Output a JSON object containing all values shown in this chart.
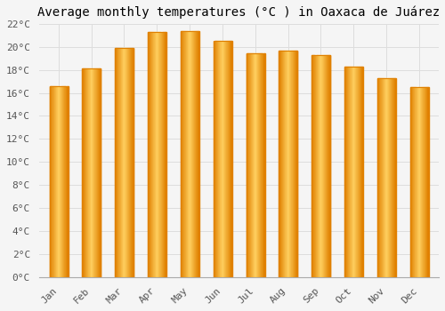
{
  "title": "Average monthly temperatures (°C ) in Oaxaca de Juárez",
  "months": [
    "Jan",
    "Feb",
    "Mar",
    "Apr",
    "May",
    "Jun",
    "Jul",
    "Aug",
    "Sep",
    "Oct",
    "Nov",
    "Dec"
  ],
  "temperatures": [
    16.6,
    18.1,
    19.9,
    21.3,
    21.4,
    20.5,
    19.4,
    19.7,
    19.3,
    18.3,
    17.3,
    16.5
  ],
  "bar_color_center": "#FFD060",
  "bar_color_edge": "#E08000",
  "background_color": "#F5F5F5",
  "grid_color": "#DDDDDD",
  "ylim": [
    0,
    22
  ],
  "ytick_step": 2,
  "title_fontsize": 10,
  "tick_fontsize": 8,
  "font_family": "monospace",
  "bar_width": 0.55
}
